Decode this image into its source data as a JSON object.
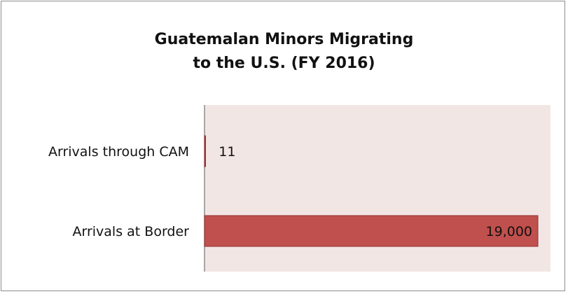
{
  "chart_data": {
    "type": "bar",
    "orientation": "horizontal",
    "title_lines": [
      "Guatemalan Minors Migrating",
      "to the U.S. (FY 2016)"
    ],
    "categories": [
      "Arrivals through CAM",
      "Arrivals at Border"
    ],
    "values": [
      11,
      19000
    ],
    "data_labels": [
      "11",
      "19,000"
    ],
    "xlim": [
      0,
      19000
    ],
    "grid": false,
    "legend": "none",
    "colors": {
      "bar": "#c0504d",
      "bar_border": "#8c2f2d",
      "plot_background": "#f2e6e5",
      "axis": "#8c8c8c"
    }
  }
}
